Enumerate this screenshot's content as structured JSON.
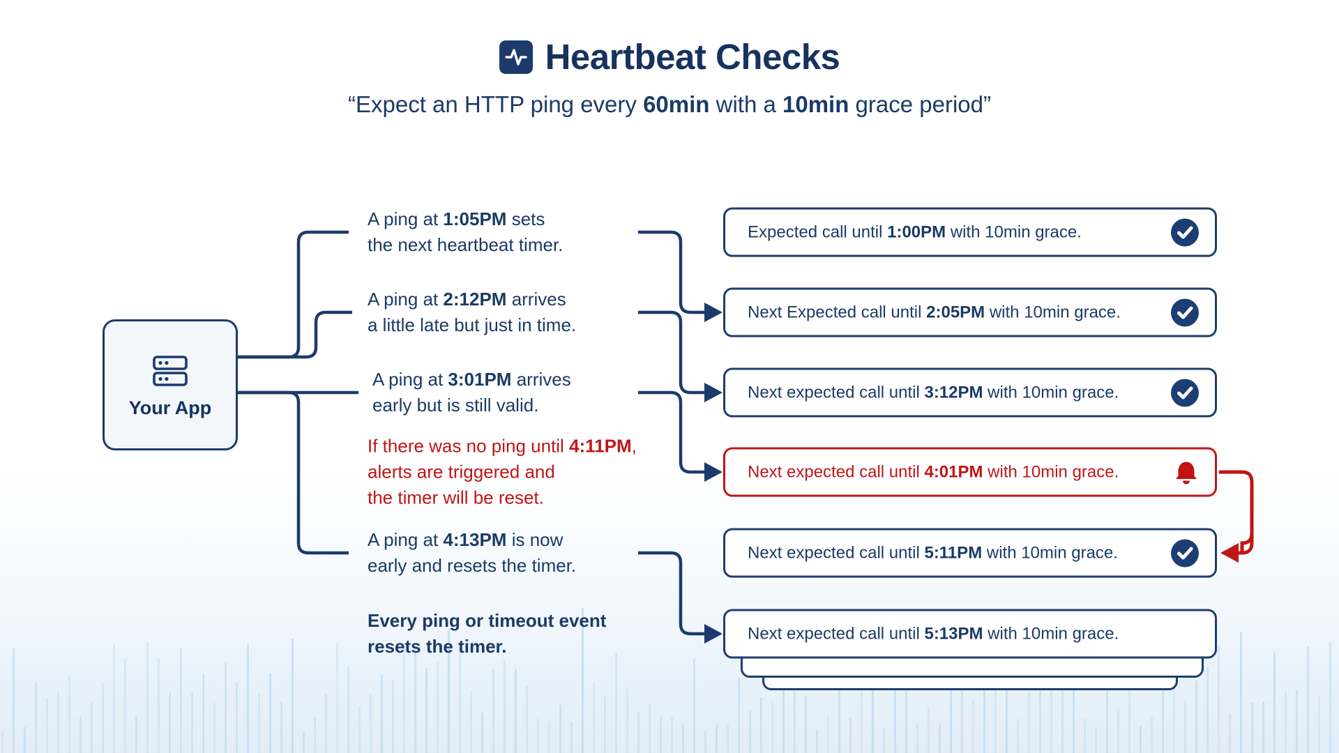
{
  "colors": {
    "navy": "#1b3a66",
    "navy_border": "#1e3c6e",
    "alert_red": "#c01515",
    "badge_blue": "#1d3e73",
    "waveform_blue": "#bdd8ef"
  },
  "header": {
    "title": "Heartbeat Checks",
    "title_icon": "pulse-icon",
    "subtitle": {
      "s1": "“Expect an HTTP ping every ",
      "b1": "60min",
      "s2": " with a ",
      "b2": "10min",
      "s3": " grace period”"
    }
  },
  "app": {
    "label": "Your App",
    "icon": "server-icon"
  },
  "events": [
    {
      "pre": "A ping at ",
      "time": "1:05PM",
      "post": " sets",
      "line2": "the next heartbeat timer.",
      "style": "normal"
    },
    {
      "pre": "A ping at ",
      "time": "2:12PM",
      "post": " arrives",
      "line2": "a little late but just in time.",
      "style": "normal"
    },
    {
      "pre": "A ping at ",
      "time": "3:01PM",
      "post": " arrives",
      "line2": "early but is still valid.",
      "style": "normal"
    },
    {
      "pre": "If there was no ping until ",
      "time": "4:11PM",
      "post": ",",
      "line2": "alerts are triggered and",
      "line3": "the timer will be reset.",
      "style": "alert"
    },
    {
      "pre": "A ping at ",
      "time": "4:13PM",
      "post": " is now",
      "line2": "early and resets the timer.",
      "style": "normal"
    },
    {
      "line1": "Every ping or timeout event",
      "line2": "resets the timer.",
      "style": "bold"
    }
  ],
  "timers": [
    {
      "pre": "Expected call until ",
      "time": "1:00PM",
      "post": " with 10min grace.",
      "icon": "check",
      "variant": "ok"
    },
    {
      "pre": "Next Expected call until ",
      "time": "2:05PM",
      "post": " with 10min grace.",
      "icon": "check",
      "variant": "ok"
    },
    {
      "pre": "Next expected call until ",
      "time": "3:12PM",
      "post": " with 10min grace.",
      "icon": "check",
      "variant": "ok"
    },
    {
      "pre": "Next expected call until ",
      "time": "4:01PM",
      "post": " with 10min grace.",
      "icon": "bell",
      "variant": "alert"
    },
    {
      "pre": "Next expected call until ",
      "time": "5:11PM",
      "post": " with 10min grace.",
      "icon": "check",
      "variant": "ok"
    },
    {
      "pre": "Next expected call until ",
      "time": "5:13PM",
      "post": " with 10min grace.",
      "icon": "none",
      "variant": "ok"
    }
  ]
}
